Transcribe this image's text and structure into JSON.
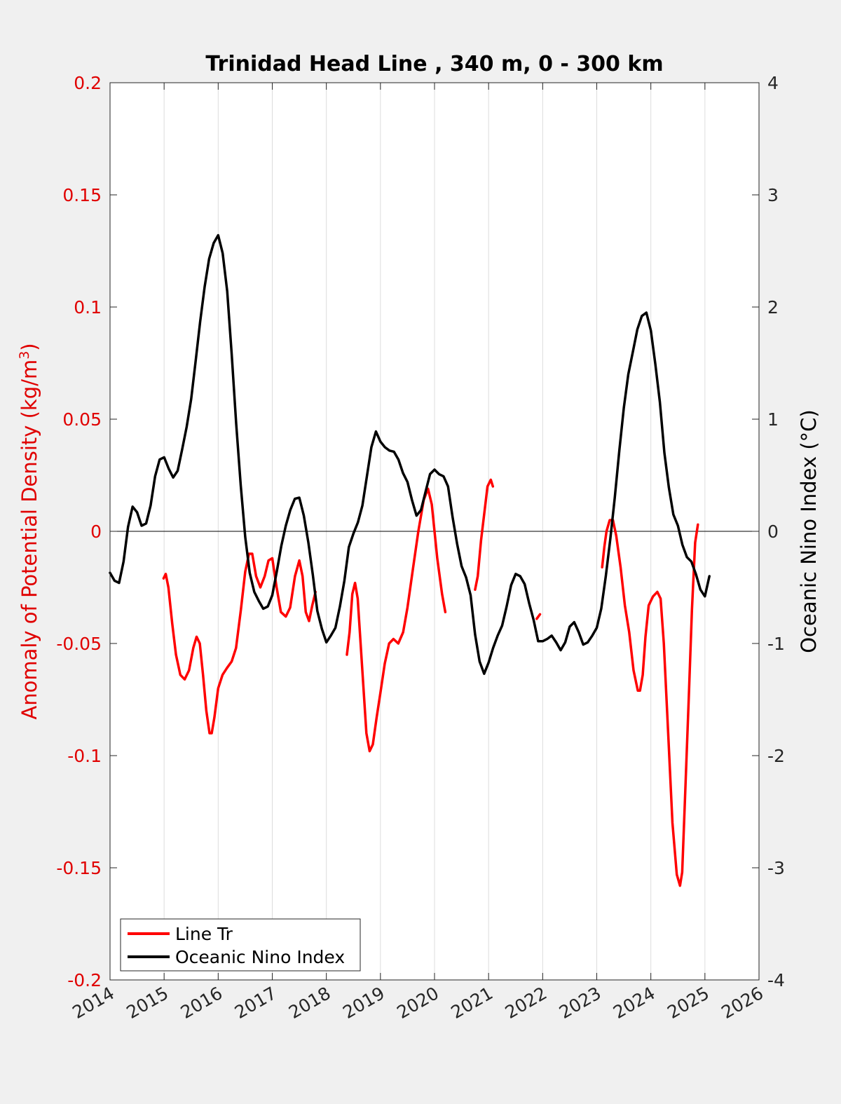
{
  "chart_data": {
    "type": "line",
    "title": "Trinidad Head Line , 340 m, 0 - 300 km",
    "xlabel": "",
    "ylabel_left": "Anomaly of Potential Density (kg/m",
    "ylabel_left_sup": "3",
    "ylabel_left_close": ")",
    "ylabel_right": "Oceanic Nino Index (°C)",
    "xlim": [
      2014,
      2026
    ],
    "ylim_left": [
      -0.2,
      0.2
    ],
    "ylim_right": [
      -4,
      4
    ],
    "x_ticks": [
      "2014",
      "2015",
      "2016",
      "2017",
      "2018",
      "2019",
      "2020",
      "2021",
      "2022",
      "2023",
      "2024",
      "2025",
      "2026"
    ],
    "y_ticks_left": [
      "0.2",
      "0.15",
      "0.1",
      "0.05",
      "0",
      "-0.05",
      "-0.1",
      "-0.15",
      "-0.2"
    ],
    "y_ticks_right": [
      "4",
      "3",
      "2",
      "1",
      "0",
      "-1",
      "-2",
      "-3",
      "-4"
    ],
    "grid": "vertical",
    "legend_position": "bottom-left",
    "colors": {
      "left_axis": "#e00000",
      "series_line": "#ff0000",
      "oni": "#000000",
      "zero_line": "#000000"
    },
    "series": [
      {
        "name": "Line Tr",
        "axis": "left",
        "segments": [
          [
            [
              2014.99,
              -0.021
            ],
            [
              2015.03,
              -0.019
            ],
            [
              2015.08,
              -0.025
            ],
            [
              2015.15,
              -0.041
            ],
            [
              2015.22,
              -0.055
            ],
            [
              2015.3,
              -0.064
            ],
            [
              2015.38,
              -0.066
            ],
            [
              2015.46,
              -0.062
            ],
            [
              2015.54,
              -0.052
            ],
            [
              2015.6,
              -0.047
            ],
            [
              2015.66,
              -0.05
            ],
            [
              2015.72,
              -0.064
            ],
            [
              2015.78,
              -0.08
            ],
            [
              2015.84,
              -0.09
            ],
            [
              2015.88,
              -0.09
            ],
            [
              2015.93,
              -0.083
            ],
            [
              2016.0,
              -0.07
            ],
            [
              2016.08,
              -0.064
            ],
            [
              2016.16,
              -0.061
            ],
            [
              2016.25,
              -0.058
            ],
            [
              2016.33,
              -0.052
            ],
            [
              2016.42,
              -0.035
            ],
            [
              2016.5,
              -0.018
            ],
            [
              2016.57,
              -0.01
            ],
            [
              2016.63,
              -0.01
            ],
            [
              2016.7,
              -0.02
            ],
            [
              2016.78,
              -0.025
            ],
            [
              2016.86,
              -0.02
            ],
            [
              2016.93,
              -0.013
            ],
            [
              2017.0,
              -0.012
            ],
            [
              2017.08,
              -0.025
            ],
            [
              2017.16,
              -0.036
            ],
            [
              2017.25,
              -0.038
            ],
            [
              2017.33,
              -0.034
            ],
            [
              2017.42,
              -0.02
            ],
            [
              2017.5,
              -0.013
            ],
            [
              2017.56,
              -0.02
            ],
            [
              2017.62,
              -0.036
            ],
            [
              2017.68,
              -0.04
            ],
            [
              2017.74,
              -0.033
            ],
            [
              2017.8,
              -0.027
            ]
          ],
          [
            [
              2018.38,
              -0.055
            ],
            [
              2018.43,
              -0.045
            ],
            [
              2018.48,
              -0.028
            ],
            [
              2018.53,
              -0.023
            ],
            [
              2018.58,
              -0.03
            ],
            [
              2018.66,
              -0.06
            ],
            [
              2018.74,
              -0.09
            ],
            [
              2018.8,
              -0.098
            ],
            [
              2018.86,
              -0.095
            ],
            [
              2018.93,
              -0.083
            ],
            [
              2019.0,
              -0.072
            ],
            [
              2019.08,
              -0.059
            ],
            [
              2019.16,
              -0.05
            ],
            [
              2019.24,
              -0.048
            ],
            [
              2019.33,
              -0.05
            ],
            [
              2019.42,
              -0.045
            ],
            [
              2019.5,
              -0.034
            ],
            [
              2019.6,
              -0.017
            ],
            [
              2019.7,
              0.0
            ],
            [
              2019.8,
              0.014
            ],
            [
              2019.88,
              0.019
            ],
            [
              2019.95,
              0.012
            ],
            [
              2020.05,
              -0.012
            ],
            [
              2020.14,
              -0.028
            ],
            [
              2020.2,
              -0.036
            ]
          ],
          [
            [
              2020.75,
              -0.026
            ],
            [
              2020.8,
              -0.02
            ],
            [
              2020.86,
              -0.004
            ],
            [
              2020.92,
              0.008
            ],
            [
              2020.98,
              0.02
            ],
            [
              2021.04,
              0.023
            ],
            [
              2021.08,
              0.02
            ]
          ],
          [
            [
              2021.89,
              -0.039
            ],
            [
              2021.95,
              -0.037
            ]
          ],
          [
            [
              2023.1,
              -0.016
            ],
            [
              2023.14,
              -0.007
            ],
            [
              2023.18,
              0.0
            ],
            [
              2023.24,
              0.005
            ],
            [
              2023.3,
              0.005
            ],
            [
              2023.36,
              -0.002
            ],
            [
              2023.44,
              -0.016
            ],
            [
              2023.52,
              -0.033
            ],
            [
              2023.6,
              -0.045
            ],
            [
              2023.68,
              -0.062
            ],
            [
              2023.76,
              -0.071
            ],
            [
              2023.8,
              -0.071
            ],
            [
              2023.85,
              -0.064
            ],
            [
              2023.9,
              -0.047
            ],
            [
              2023.96,
              -0.033
            ],
            [
              2024.04,
              -0.029
            ],
            [
              2024.12,
              -0.027
            ],
            [
              2024.18,
              -0.03
            ],
            [
              2024.24,
              -0.05
            ],
            [
              2024.32,
              -0.09
            ],
            [
              2024.4,
              -0.13
            ],
            [
              2024.48,
              -0.153
            ],
            [
              2024.54,
              -0.158
            ],
            [
              2024.58,
              -0.152
            ],
            [
              2024.63,
              -0.12
            ],
            [
              2024.7,
              -0.075
            ],
            [
              2024.76,
              -0.035
            ],
            [
              2024.82,
              -0.005
            ],
            [
              2024.87,
              0.003
            ]
          ]
        ]
      },
      {
        "name": "Oceanic Nino Index",
        "axis": "right",
        "points": [
          [
            2014.0,
            -0.37
          ],
          [
            2014.083,
            -0.44
          ],
          [
            2014.167,
            -0.46
          ],
          [
            2014.25,
            -0.27
          ],
          [
            2014.333,
            0.04
          ],
          [
            2014.417,
            0.22
          ],
          [
            2014.5,
            0.17
          ],
          [
            2014.583,
            0.05
          ],
          [
            2014.667,
            0.07
          ],
          [
            2014.75,
            0.23
          ],
          [
            2014.833,
            0.49
          ],
          [
            2014.917,
            0.64
          ],
          [
            2015.0,
            0.66
          ],
          [
            2015.083,
            0.56
          ],
          [
            2015.167,
            0.48
          ],
          [
            2015.25,
            0.54
          ],
          [
            2015.333,
            0.73
          ],
          [
            2015.417,
            0.93
          ],
          [
            2015.5,
            1.18
          ],
          [
            2015.583,
            1.52
          ],
          [
            2015.667,
            1.87
          ],
          [
            2015.75,
            2.18
          ],
          [
            2015.833,
            2.43
          ],
          [
            2015.917,
            2.57
          ],
          [
            2016.0,
            2.64
          ],
          [
            2016.083,
            2.48
          ],
          [
            2016.167,
            2.14
          ],
          [
            2016.25,
            1.58
          ],
          [
            2016.333,
            0.96
          ],
          [
            2016.417,
            0.41
          ],
          [
            2016.5,
            -0.05
          ],
          [
            2016.583,
            -0.37
          ],
          [
            2016.667,
            -0.54
          ],
          [
            2016.75,
            -0.62
          ],
          [
            2016.833,
            -0.69
          ],
          [
            2016.917,
            -0.67
          ],
          [
            2017.0,
            -0.57
          ],
          [
            2017.083,
            -0.36
          ],
          [
            2017.167,
            -0.13
          ],
          [
            2017.25,
            0.05
          ],
          [
            2017.333,
            0.19
          ],
          [
            2017.417,
            0.29
          ],
          [
            2017.5,
            0.3
          ],
          [
            2017.583,
            0.14
          ],
          [
            2017.667,
            -0.1
          ],
          [
            2017.75,
            -0.39
          ],
          [
            2017.833,
            -0.71
          ],
          [
            2017.917,
            -0.87
          ],
          [
            2018.0,
            -0.99
          ],
          [
            2018.083,
            -0.93
          ],
          [
            2018.167,
            -0.86
          ],
          [
            2018.25,
            -0.67
          ],
          [
            2018.333,
            -0.44
          ],
          [
            2018.417,
            -0.14
          ],
          [
            2018.5,
            -0.02
          ],
          [
            2018.583,
            0.08
          ],
          [
            2018.667,
            0.23
          ],
          [
            2018.75,
            0.49
          ],
          [
            2018.833,
            0.75
          ],
          [
            2018.917,
            0.89
          ],
          [
            2019.0,
            0.8
          ],
          [
            2019.083,
            0.75
          ],
          [
            2019.167,
            0.72
          ],
          [
            2019.25,
            0.71
          ],
          [
            2019.333,
            0.64
          ],
          [
            2019.417,
            0.52
          ],
          [
            2019.5,
            0.44
          ],
          [
            2019.583,
            0.28
          ],
          [
            2019.667,
            0.14
          ],
          [
            2019.75,
            0.19
          ],
          [
            2019.833,
            0.35
          ],
          [
            2019.917,
            0.51
          ],
          [
            2020.0,
            0.55
          ],
          [
            2020.083,
            0.51
          ],
          [
            2020.167,
            0.49
          ],
          [
            2020.25,
            0.4
          ],
          [
            2020.333,
            0.13
          ],
          [
            2020.417,
            -0.11
          ],
          [
            2020.5,
            -0.31
          ],
          [
            2020.583,
            -0.41
          ],
          [
            2020.667,
            -0.57
          ],
          [
            2020.75,
            -0.92
          ],
          [
            2020.833,
            -1.16
          ],
          [
            2020.917,
            -1.27
          ],
          [
            2021.0,
            -1.17
          ],
          [
            2021.083,
            -1.04
          ],
          [
            2021.167,
            -0.93
          ],
          [
            2021.25,
            -0.84
          ],
          [
            2021.333,
            -0.67
          ],
          [
            2021.417,
            -0.48
          ],
          [
            2021.5,
            -0.38
          ],
          [
            2021.583,
            -0.4
          ],
          [
            2021.667,
            -0.47
          ],
          [
            2021.75,
            -0.64
          ],
          [
            2021.833,
            -0.79
          ],
          [
            2021.917,
            -0.98
          ],
          [
            2022.0,
            -0.98
          ],
          [
            2022.083,
            -0.96
          ],
          [
            2022.167,
            -0.93
          ],
          [
            2022.25,
            -0.99
          ],
          [
            2022.333,
            -1.06
          ],
          [
            2022.417,
            -0.99
          ],
          [
            2022.5,
            -0.85
          ],
          [
            2022.583,
            -0.81
          ],
          [
            2022.667,
            -0.9
          ],
          [
            2022.75,
            -1.01
          ],
          [
            2022.833,
            -0.99
          ],
          [
            2022.917,
            -0.93
          ],
          [
            2023.0,
            -0.86
          ],
          [
            2023.083,
            -0.69
          ],
          [
            2023.167,
            -0.4
          ],
          [
            2023.25,
            -0.07
          ],
          [
            2023.333,
            0.3
          ],
          [
            2023.417,
            0.72
          ],
          [
            2023.5,
            1.1
          ],
          [
            2023.583,
            1.4
          ],
          [
            2023.667,
            1.6
          ],
          [
            2023.75,
            1.8
          ],
          [
            2023.833,
            1.92
          ],
          [
            2023.917,
            1.95
          ],
          [
            2024.0,
            1.79
          ],
          [
            2024.083,
            1.49
          ],
          [
            2024.167,
            1.15
          ],
          [
            2024.25,
            0.7
          ],
          [
            2024.333,
            0.39
          ],
          [
            2024.417,
            0.15
          ],
          [
            2024.5,
            0.05
          ],
          [
            2024.583,
            -0.12
          ],
          [
            2024.667,
            -0.23
          ],
          [
            2024.75,
            -0.27
          ],
          [
            2024.833,
            -0.38
          ],
          [
            2024.917,
            -0.52
          ],
          [
            2025.0,
            -0.58
          ],
          [
            2025.083,
            -0.4
          ]
        ]
      }
    ]
  }
}
